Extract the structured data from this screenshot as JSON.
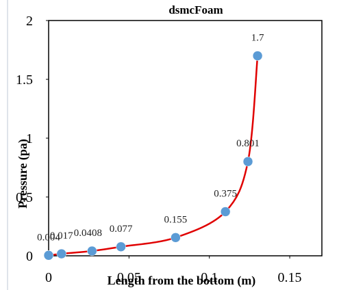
{
  "chart_data": {
    "type": "scatter",
    "title": "dsmcFoam",
    "xlabel": "Length from the bottom (m)",
    "ylabel": "Pressure (pa)",
    "xlim": [
      0,
      0.17
    ],
    "ylim": [
      0,
      2
    ],
    "x_ticks": [
      "0",
      "0.05",
      "0.1",
      "0.15"
    ],
    "y_ticks": [
      "0",
      "0.5",
      "1",
      "1.5",
      "2"
    ],
    "grid": false,
    "legend": "none",
    "series": [
      {
        "points": [
          {
            "x": 0.0,
            "y": 0.004,
            "label": "0.004"
          },
          {
            "x": 0.008,
            "y": 0.017,
            "label": "0.017"
          },
          {
            "x": 0.027,
            "y": 0.0408,
            "label": "0.0408"
          },
          {
            "x": 0.045,
            "y": 0.077,
            "label": "0.077"
          },
          {
            "x": 0.079,
            "y": 0.155,
            "label": "0.155"
          },
          {
            "x": 0.11,
            "y": 0.375,
            "label": "0.375"
          },
          {
            "x": 0.124,
            "y": 0.801,
            "label": "0.801"
          },
          {
            "x": 0.13,
            "y": 1.7,
            "label": "1.7"
          }
        ],
        "marker_color": "#5b9bd5",
        "line_color": "#e00000"
      }
    ]
  }
}
